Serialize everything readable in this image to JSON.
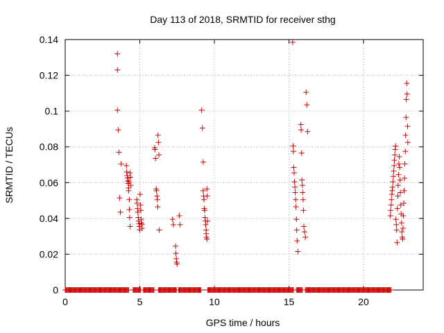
{
  "chart_data": {
    "type": "scatter",
    "title": "Day 113 of 2018, SRMTID for receiver sthg",
    "xlabel": "GPS time / hours",
    "ylabel": "SRMTID / TECUs",
    "xlim": [
      0,
      24
    ],
    "ylim": [
      0,
      0.14
    ],
    "xticks": [
      0,
      5,
      10,
      15,
      20
    ],
    "xtick_labels": [
      "0",
      "5",
      "10",
      "15",
      "20"
    ],
    "yticks": [
      0,
      0.02,
      0.04,
      0.06,
      0.08,
      0.1,
      0.12,
      0.14
    ],
    "ytick_labels": [
      "0",
      "0.02",
      "0.04",
      "0.06",
      "0.08",
      "0.1",
      "0.12",
      "0.14"
    ],
    "grid": true,
    "marker": "plus",
    "color": "#cc0000",
    "series": [
      {
        "x": [
          3.5,
          3.5,
          3.5,
          3.55,
          3.6,
          3.65,
          3.7,
          3.75,
          4.1,
          4.12,
          4.15,
          4.18,
          4.2,
          4.22,
          4.25,
          4.25,
          4.28,
          4.3,
          4.3,
          4.32,
          4.35,
          4.35,
          4.38,
          4.4,
          4.8,
          4.82,
          4.85,
          4.87,
          4.9,
          4.92,
          4.95,
          4.97,
          5.0,
          5.02,
          5.05,
          5.07,
          5.1,
          5.12,
          5.15,
          5.15,
          6.0,
          6.02,
          6.05,
          6.1,
          6.12,
          6.15,
          6.18,
          6.2,
          6.22,
          6.25,
          6.28,
          6.3,
          7.2,
          7.25,
          7.4,
          7.42,
          7.45,
          7.47,
          7.5,
          7.65,
          7.7,
          9.15,
          9.2,
          9.25,
          9.25,
          9.28,
          9.3,
          9.32,
          9.35,
          9.37,
          9.4,
          9.42,
          9.45,
          9.45,
          9.47,
          9.5,
          9.5,
          9.52,
          9.55,
          15.25,
          15.28,
          15.3,
          15.32,
          15.35,
          15.37,
          15.4,
          15.42,
          15.45,
          15.47,
          15.5,
          15.52,
          15.55,
          15.6,
          15.8,
          15.82,
          15.85,
          15.87,
          15.9,
          15.92,
          15.95,
          15.97,
          16.0,
          16.05,
          16.1,
          16.15,
          16.2,
          16.25,
          21.8,
          21.82,
          21.85,
          21.87,
          21.9,
          21.92,
          21.95,
          21.97,
          22.0,
          22.02,
          22.05,
          22.07,
          22.1,
          22.12,
          22.15,
          22.17,
          22.2,
          22.22,
          22.25,
          22.27,
          22.3,
          22.32,
          22.35,
          22.37,
          22.4,
          22.42,
          22.45,
          22.47,
          22.5,
          22.52,
          22.55,
          22.57,
          22.6,
          22.62,
          22.65,
          22.67,
          22.7,
          22.72,
          22.75,
          22.77,
          22.8,
          22.82,
          22.85,
          22.87,
          22.9,
          22.92,
          22.95,
          22.97
        ],
        "y": [
          0.132,
          0.123,
          0.1005,
          0.0895,
          0.077,
          0.0515,
          0.0435,
          0.0705,
          0.0695,
          0.066,
          0.064,
          0.0625,
          0.061,
          0.0595,
          0.057,
          0.0555,
          0.0605,
          0.0505,
          0.045,
          0.0405,
          0.0355,
          0.0655,
          0.063,
          0.0585,
          0.0505,
          0.0485,
          0.0455,
          0.0435,
          0.0405,
          0.0385,
          0.037,
          0.0355,
          0.0335,
          0.0535,
          0.0475,
          0.0445,
          0.0395,
          0.0375,
          0.0365,
          0.0345,
          0.0795,
          0.0785,
          0.0735,
          0.0565,
          0.0555,
          0.0525,
          0.0505,
          0.0465,
          0.0865,
          0.0825,
          0.0755,
          0.0335,
          0.0395,
          0.0365,
          0.0245,
          0.0205,
          0.0175,
          0.0155,
          0.0145,
          0.0415,
          0.0365,
          0.1005,
          0.0905,
          0.0715,
          0.0555,
          0.0525,
          0.0505,
          0.0455,
          0.0445,
          0.0405,
          0.0385,
          0.0365,
          0.0335,
          0.0315,
          0.0295,
          0.0285,
          0.0565,
          0.0525,
          0.0385,
          0.1385,
          0.0805,
          0.0775,
          0.0685,
          0.0655,
          0.0605,
          0.0575,
          0.0545,
          0.0505,
          0.0465,
          0.0395,
          0.0335,
          0.0275,
          0.0215,
          0.0925,
          0.0895,
          0.0765,
          0.0615,
          0.0585,
          0.0545,
          0.0505,
          0.0445,
          0.0355,
          0.0325,
          0.0295,
          0.1105,
          0.1035,
          0.0885,
          0.0415,
          0.0445,
          0.0475,
          0.0505,
          0.0535,
          0.0555,
          0.0575,
          0.0605,
          0.0635,
          0.0665,
          0.0695,
          0.0725,
          0.0755,
          0.0785,
          0.0805,
          0.0395,
          0.0365,
          0.0335,
          0.0265,
          0.0455,
          0.0525,
          0.0585,
          0.0645,
          0.0705,
          0.0745,
          0.0685,
          0.0615,
          0.0545,
          0.0475,
          0.0425,
          0.0375,
          0.0325,
          0.0295,
          0.0285,
          0.0345,
          0.0415,
          0.0485,
          0.0555,
          0.0625,
          0.0705,
          0.0775,
          0.0865,
          0.0965,
          0.1065,
          0.1155,
          0.1095,
          0.0915,
          0.0825
        ]
      },
      {
        "name": "",
        "x_ranges": [
          [
            0.0,
            4.25
          ],
          [
            4.55,
            5.05
          ],
          [
            5.25,
            5.95
          ],
          [
            6.25,
            7.45
          ],
          [
            7.6,
            9.1
          ],
          [
            9.55,
            15.3
          ],
          [
            15.5,
            15.9
          ],
          [
            16.1,
            21.85
          ]
        ],
        "y": 0
      }
    ]
  }
}
